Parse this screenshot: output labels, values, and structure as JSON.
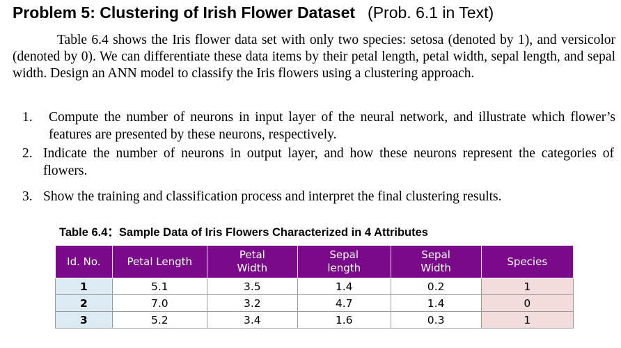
{
  "title": {
    "main": "Problem 5: Clustering of Irish Flower Dataset",
    "sub": "(Prob. 6.1 in Text)"
  },
  "intro": "Table 6.4 shows the Iris flower data set with only two species:  setosa (denoted by 1), and versicolor (denoted by 0). We can differentiate these data items by their petal length, petal width, sepal length, and sepal width. Design an ANN model to classify the Iris flowers using a clustering approach.",
  "items": [
    {
      "num": "1.",
      "text": "Compute the number of neurons in input layer of the neural network, and illustrate which flower’s features are presented by these neurons, respectively."
    },
    {
      "num": "2.",
      "text": "Indicate the number of neurons in output layer, and how these neurons represent the categories of flowers."
    },
    {
      "num": "3.",
      "text": "Show the training and classification process and interpret the final clustering results."
    }
  ],
  "table": {
    "caption": "Table 6.4：Sample Data of Iris Flowers Characterized in 4 Attributes",
    "headers": [
      {
        "l1": "Id. No.",
        "l2": ""
      },
      {
        "l1": "Petal Length",
        "l2": ""
      },
      {
        "l1": "Petal",
        "l2": "Width"
      },
      {
        "l1": "Sepal",
        "l2": "length"
      },
      {
        "l1": "Sepal",
        "l2": "Width"
      },
      {
        "l1": "Species",
        "l2": ""
      }
    ],
    "rows": [
      [
        "1",
        "5.1",
        "3.5",
        "1.4",
        "0.2",
        "1"
      ],
      [
        "2",
        "7.0",
        "3.2",
        "4.7",
        "1.4",
        "0"
      ],
      [
        "3",
        "5.2",
        "3.4",
        "1.6",
        "0.3",
        "1"
      ]
    ],
    "colors": {
      "header_bg": "#7a0a8a",
      "id_bg": "#dbeaf3",
      "species_bg": "#f2dcdc"
    }
  }
}
